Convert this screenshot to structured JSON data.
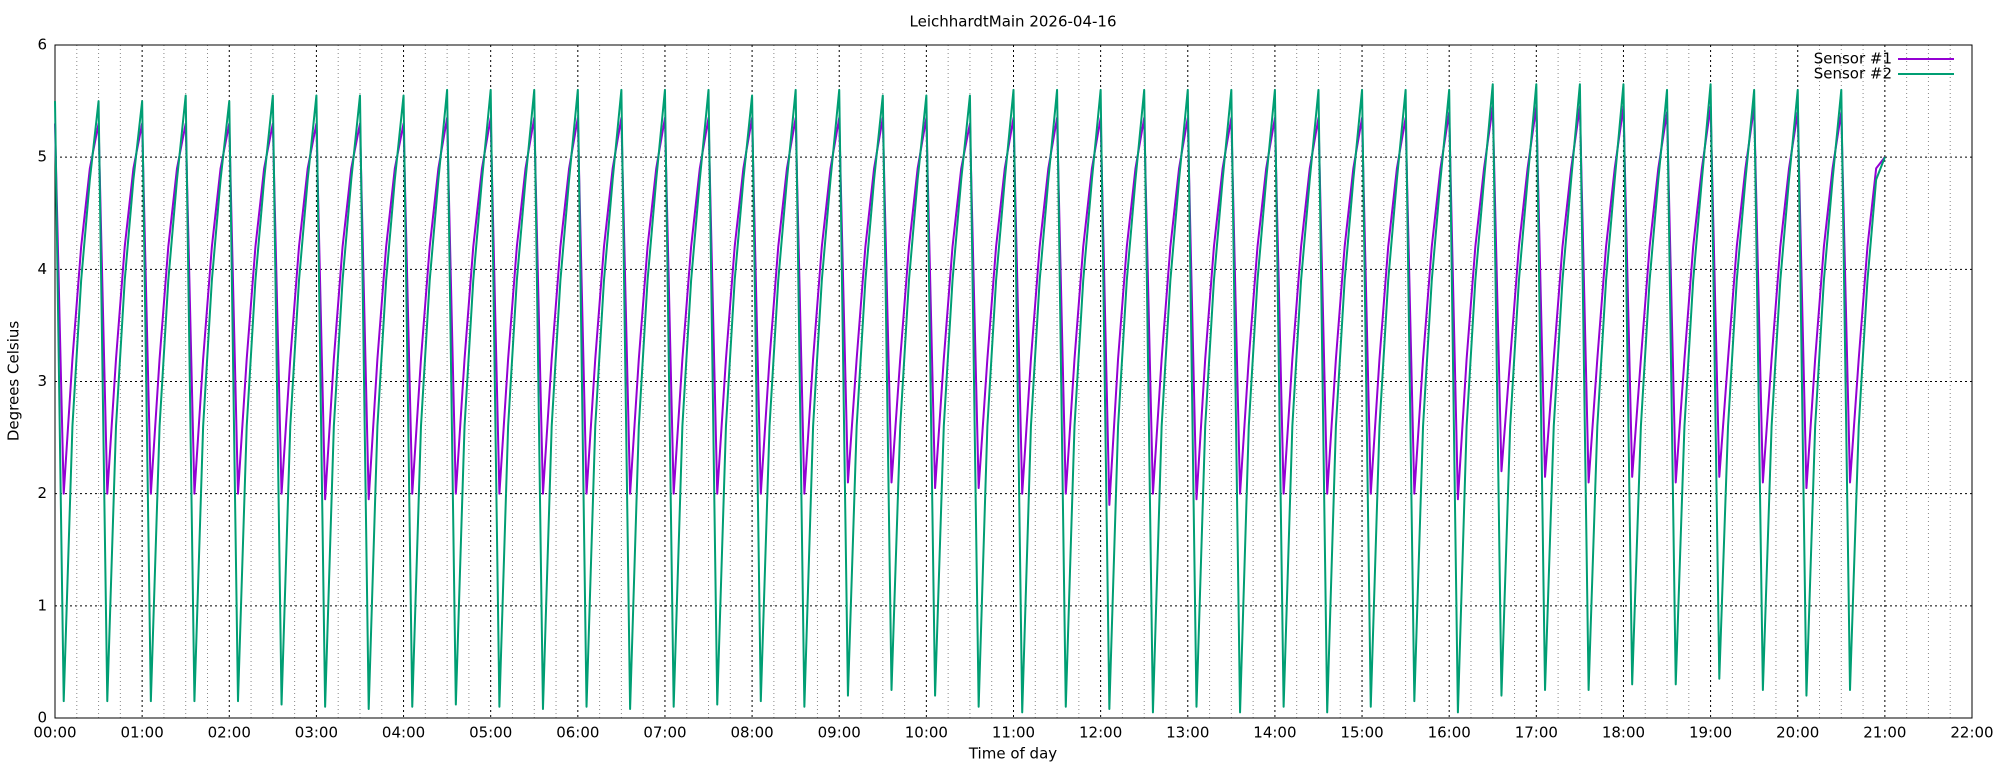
{
  "chart_data": {
    "type": "line",
    "title": "LeichhardtMain 2026-04-16",
    "xlabel": "Time of day",
    "ylabel": "Degrees Celsius",
    "x": [
      0,
      0.1,
      0.2,
      0.3,
      0.4,
      0.5,
      0.6,
      0.7,
      0.8,
      0.9,
      1,
      1.1,
      1.2,
      1.3,
      1.4,
      1.5,
      1.6,
      1.7,
      1.8,
      1.9,
      2,
      2.1,
      2.2,
      2.3,
      2.4,
      2.5,
      2.6,
      2.7,
      2.8,
      2.9,
      3,
      3.1,
      3.2,
      3.3,
      3.4,
      3.5,
      3.6,
      3.7,
      3.8,
      3.9,
      4,
      4.1,
      4.2,
      4.3,
      4.4,
      4.5,
      4.6,
      4.7,
      4.8,
      4.9,
      5,
      5.1,
      5.2,
      5.3,
      5.4,
      5.5,
      5.6,
      5.7,
      5.8,
      5.9,
      6,
      6.1,
      6.2,
      6.3,
      6.4,
      6.5,
      6.6,
      6.7,
      6.8,
      6.9,
      7,
      7.1,
      7.2,
      7.3,
      7.4,
      7.5,
      7.6,
      7.7,
      7.8,
      7.9,
      8,
      8.1,
      8.2,
      8.3,
      8.4,
      8.5,
      8.6,
      8.7,
      8.8,
      8.9,
      9,
      9.1,
      9.2,
      9.3,
      9.4,
      9.5,
      9.6,
      9.7,
      9.8,
      9.9,
      10,
      10.1,
      10.2,
      10.3,
      10.4,
      10.5,
      10.6,
      10.7,
      10.8,
      10.9,
      11,
      11.1,
      11.2,
      11.3,
      11.4,
      11.5,
      11.6,
      11.7,
      11.8,
      11.9,
      12,
      12.1,
      12.2,
      12.3,
      12.4,
      12.5,
      12.6,
      12.7,
      12.8,
      12.9,
      13,
      13.1,
      13.2,
      13.3,
      13.4,
      13.5,
      13.6,
      13.7,
      13.8,
      13.9,
      14,
      14.1,
      14.2,
      14.3,
      14.4,
      14.5,
      14.6,
      14.7,
      14.8,
      14.9,
      15,
      15.1,
      15.2,
      15.3,
      15.4,
      15.5,
      15.6,
      15.7,
      15.8,
      15.9,
      16,
      16.1,
      16.2,
      16.3,
      16.4,
      16.5,
      16.6,
      16.7,
      16.8,
      16.9,
      17,
      17.1,
      17.2,
      17.3,
      17.4,
      17.5,
      17.6,
      17.7,
      17.8,
      17.9,
      18,
      18.1,
      18.2,
      18.3,
      18.4,
      18.5,
      18.6,
      18.7,
      18.8,
      18.9,
      19,
      19.1,
      19.2,
      19.3,
      19.4,
      19.5,
      19.6,
      19.7,
      19.8,
      19.9,
      20,
      20.1,
      20.2,
      20.3,
      20.4,
      20.5,
      20.6,
      20.7,
      20.8,
      20.9,
      21
    ],
    "series": [
      {
        "name": "Sensor #1",
        "color": "#9400d3",
        "values": [
          5.3,
          2.0,
          3.2,
          4.2,
          4.9,
          5.3,
          2.0,
          3.2,
          4.2,
          4.9,
          5.3,
          2.0,
          3.2,
          4.2,
          4.9,
          5.3,
          2.0,
          3.2,
          4.2,
          4.9,
          5.3,
          2.0,
          3.2,
          4.2,
          4.9,
          5.3,
          2.0,
          3.2,
          4.2,
          4.9,
          5.3,
          1.95,
          3.2,
          4.2,
          4.9,
          5.3,
          1.95,
          3.2,
          4.2,
          4.9,
          5.3,
          2.0,
          3.2,
          4.2,
          4.9,
          5.35,
          2.0,
          3.2,
          4.2,
          4.9,
          5.35,
          2.0,
          3.2,
          4.2,
          4.9,
          5.35,
          2.0,
          3.2,
          4.2,
          4.9,
          5.35,
          2.0,
          3.2,
          4.2,
          4.9,
          5.35,
          2.0,
          3.2,
          4.2,
          4.9,
          5.35,
          2.0,
          3.2,
          4.2,
          4.9,
          5.35,
          2.0,
          3.2,
          4.2,
          4.9,
          5.35,
          2.0,
          3.2,
          4.2,
          4.9,
          5.35,
          2.0,
          3.2,
          4.2,
          4.9,
          5.35,
          2.1,
          3.2,
          4.2,
          4.9,
          5.35,
          2.1,
          3.2,
          4.2,
          4.9,
          5.35,
          2.05,
          3.2,
          4.2,
          4.9,
          5.3,
          2.05,
          3.2,
          4.2,
          4.9,
          5.35,
          2.0,
          3.2,
          4.2,
          4.9,
          5.35,
          2.0,
          3.2,
          4.2,
          4.9,
          5.35,
          1.9,
          3.2,
          4.2,
          4.9,
          5.35,
          2.0,
          3.2,
          4.2,
          4.9,
          5.35,
          1.95,
          3.2,
          4.2,
          4.9,
          5.35,
          2.0,
          3.2,
          4.2,
          4.9,
          5.35,
          2.0,
          3.2,
          4.2,
          4.9,
          5.35,
          2.0,
          3.2,
          4.2,
          4.9,
          5.35,
          2.0,
          3.2,
          4.2,
          4.9,
          5.35,
          2.0,
          3.2,
          4.2,
          4.9,
          5.4,
          1.95,
          3.2,
          4.2,
          4.9,
          5.45,
          2.2,
          3.2,
          4.2,
          4.9,
          5.45,
          2.15,
          3.2,
          4.2,
          4.9,
          5.45,
          2.1,
          3.2,
          4.2,
          4.9,
          5.45,
          2.15,
          3.2,
          4.2,
          4.9,
          5.4,
          2.1,
          3.2,
          4.2,
          4.9,
          5.45,
          2.15,
          3.2,
          4.2,
          4.9,
          5.45,
          2.1,
          3.2,
          4.2,
          4.9,
          5.4,
          2.05,
          3.2,
          4.2,
          4.9,
          5.4,
          2.1,
          3.2,
          4.2,
          4.9,
          5.0
        ]
      },
      {
        "name": "Sensor #2",
        "color": "#009e73",
        "values": [
          5.5,
          0.15,
          2.6,
          3.9,
          4.8,
          5.5,
          0.15,
          2.6,
          3.9,
          4.8,
          5.5,
          0.15,
          2.6,
          3.9,
          4.8,
          5.55,
          0.15,
          2.6,
          3.9,
          4.8,
          5.5,
          0.15,
          2.6,
          3.9,
          4.8,
          5.55,
          0.12,
          2.6,
          3.9,
          4.8,
          5.55,
          0.1,
          2.6,
          3.9,
          4.8,
          5.55,
          0.08,
          2.6,
          3.9,
          4.8,
          5.55,
          0.1,
          2.6,
          3.9,
          4.8,
          5.6,
          0.12,
          2.6,
          3.9,
          4.8,
          5.6,
          0.1,
          2.6,
          3.9,
          4.8,
          5.6,
          0.08,
          2.6,
          3.9,
          4.8,
          5.6,
          0.1,
          2.6,
          3.9,
          4.8,
          5.6,
          0.08,
          2.6,
          3.9,
          4.8,
          5.6,
          0.1,
          2.6,
          3.9,
          4.8,
          5.6,
          0.12,
          2.6,
          3.9,
          4.8,
          5.55,
          0.15,
          2.6,
          3.9,
          4.8,
          5.6,
          0.1,
          2.6,
          3.9,
          4.8,
          5.6,
          0.2,
          2.6,
          3.9,
          4.8,
          5.55,
          0.25,
          2.6,
          3.9,
          4.8,
          5.55,
          0.2,
          2.6,
          3.9,
          4.8,
          5.55,
          0.1,
          2.6,
          3.9,
          4.8,
          5.6,
          0.05,
          2.6,
          3.9,
          4.8,
          5.6,
          0.1,
          2.6,
          3.9,
          4.8,
          5.6,
          0.08,
          2.6,
          3.9,
          4.8,
          5.6,
          0.05,
          2.6,
          3.9,
          4.8,
          5.6,
          0.1,
          2.6,
          3.9,
          4.8,
          5.6,
          0.05,
          2.6,
          3.9,
          4.8,
          5.6,
          0.1,
          2.6,
          3.9,
          4.8,
          5.6,
          0.05,
          2.6,
          3.9,
          4.8,
          5.6,
          0.1,
          2.6,
          3.9,
          4.8,
          5.6,
          0.15,
          2.6,
          3.9,
          4.8,
          5.6,
          0.05,
          2.6,
          3.9,
          4.8,
          5.65,
          0.2,
          2.6,
          3.9,
          4.8,
          5.65,
          0.25,
          2.6,
          3.9,
          4.8,
          5.65,
          0.25,
          2.6,
          3.9,
          4.8,
          5.65,
          0.3,
          2.6,
          3.9,
          4.8,
          5.6,
          0.3,
          2.6,
          3.9,
          4.8,
          5.65,
          0.35,
          2.6,
          3.9,
          4.8,
          5.6,
          0.25,
          2.6,
          3.9,
          4.8,
          5.6,
          0.2,
          2.6,
          3.9,
          4.8,
          5.6,
          0.25,
          2.6,
          3.9,
          4.8,
          5.0
        ]
      }
    ],
    "xlim": [
      0,
      22
    ],
    "xticks": [
      {
        "value": 0,
        "label": "00:00"
      },
      {
        "value": 1,
        "label": "01:00"
      },
      {
        "value": 2,
        "label": "02:00"
      },
      {
        "value": 3,
        "label": "03:00"
      },
      {
        "value": 4,
        "label": "04:00"
      },
      {
        "value": 5,
        "label": "05:00"
      },
      {
        "value": 6,
        "label": "06:00"
      },
      {
        "value": 7,
        "label": "07:00"
      },
      {
        "value": 8,
        "label": "08:00"
      },
      {
        "value": 9,
        "label": "09:00"
      },
      {
        "value": 10,
        "label": "10:00"
      },
      {
        "value": 11,
        "label": "11:00"
      },
      {
        "value": 12,
        "label": "12:00"
      },
      {
        "value": 13,
        "label": "13:00"
      },
      {
        "value": 14,
        "label": "14:00"
      },
      {
        "value": 15,
        "label": "15:00"
      },
      {
        "value": 16,
        "label": "16:00"
      },
      {
        "value": 17,
        "label": "17:00"
      },
      {
        "value": 18,
        "label": "18:00"
      },
      {
        "value": 19,
        "label": "19:00"
      },
      {
        "value": 20,
        "label": "20:00"
      },
      {
        "value": 21,
        "label": "21:00"
      },
      {
        "value": 22,
        "label": "22:00"
      }
    ],
    "xminor": 4,
    "ylim": [
      0,
      6
    ],
    "yticks": [
      0,
      1,
      2,
      3,
      4,
      5,
      6
    ],
    "grid": true,
    "legend": "upper right"
  }
}
